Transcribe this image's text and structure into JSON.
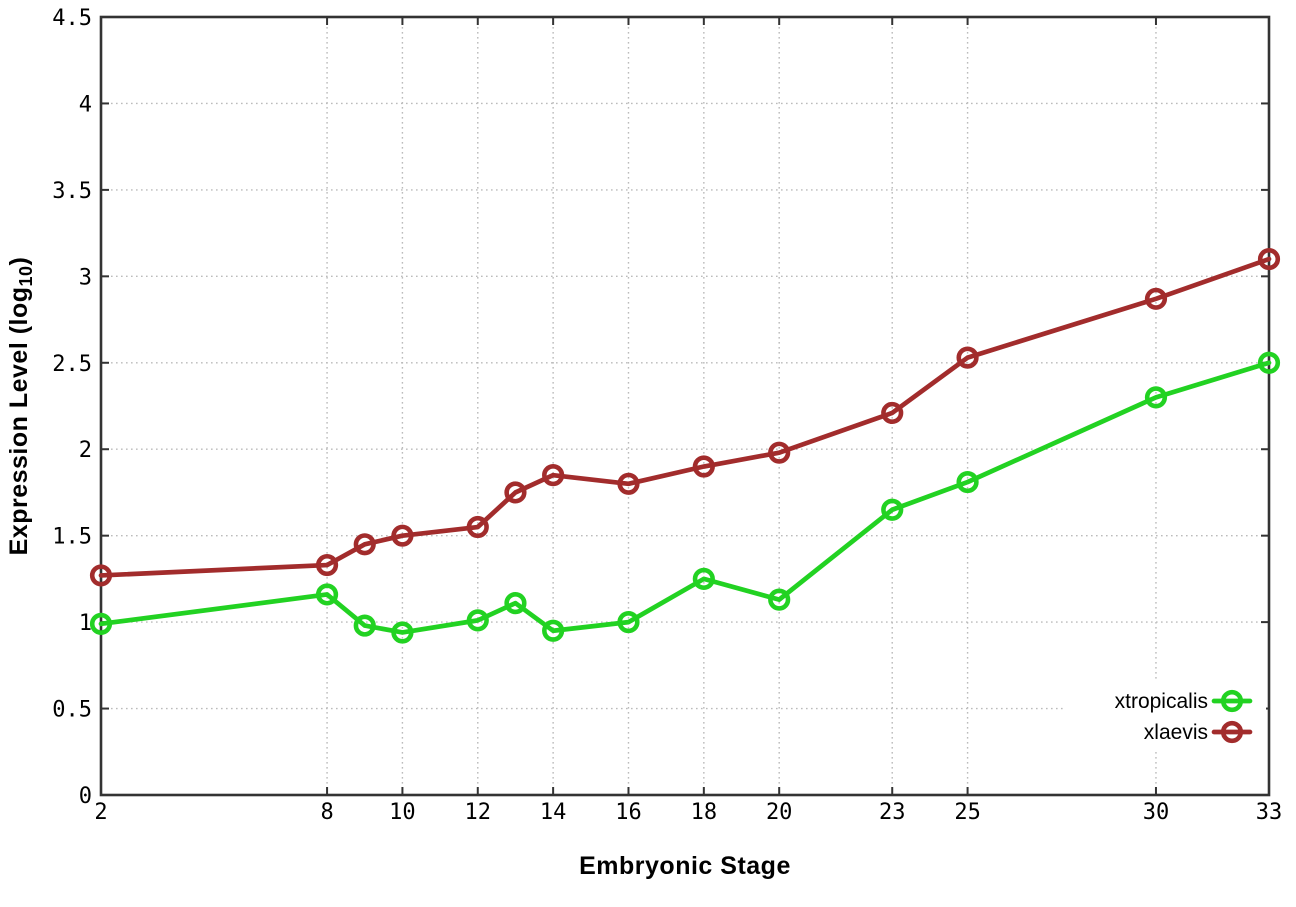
{
  "chart_data": {
    "type": "line",
    "title": "",
    "xlabel": "Embryonic Stage",
    "ylabel_prefix": "Expression Level (log",
    "ylabel_sub": "10",
    "ylabel_suffix": ")",
    "x": [
      2,
      8,
      9,
      10,
      12,
      13,
      14,
      16,
      18,
      20,
      23,
      25,
      30,
      33
    ],
    "series": [
      {
        "name": "xtropicalis",
        "color": "#22d222",
        "values": [
          0.99,
          1.16,
          0.98,
          0.94,
          1.01,
          1.11,
          0.95,
          1.0,
          1.25,
          1.13,
          1.65,
          1.81,
          2.3,
          2.5
        ]
      },
      {
        "name": "xlaevis",
        "color": "#a22c2c",
        "values": [
          1.27,
          1.33,
          1.45,
          1.5,
          1.55,
          1.75,
          1.85,
          1.8,
          1.9,
          1.98,
          2.21,
          2.53,
          2.87,
          3.1
        ]
      }
    ],
    "xlim": [
      2,
      33
    ],
    "ylim": [
      0,
      4.5
    ],
    "x_tick_values": [
      2,
      8,
      10,
      12,
      14,
      16,
      18,
      20,
      23,
      25,
      30,
      33
    ],
    "x_tick_labels": [
      "2",
      "8",
      "10",
      "12",
      "14",
      "16",
      "18",
      "20",
      "23",
      "25",
      "30",
      "33"
    ],
    "y_tick_values": [
      0,
      0.5,
      1,
      1.5,
      2,
      2.5,
      3,
      3.5,
      4,
      4.5
    ],
    "y_tick_labels": [
      "0",
      "0.5",
      "1",
      "1.5",
      "2",
      "2.5",
      "3",
      "3.5",
      "4",
      "4.5"
    ],
    "grid": true,
    "legend_position": "bottom-right"
  },
  "colors": {
    "background": "#ffffff",
    "axis": "#333333",
    "grid": "#bbbbbb",
    "text": "#000000",
    "legend_background": "#ffffff"
  }
}
